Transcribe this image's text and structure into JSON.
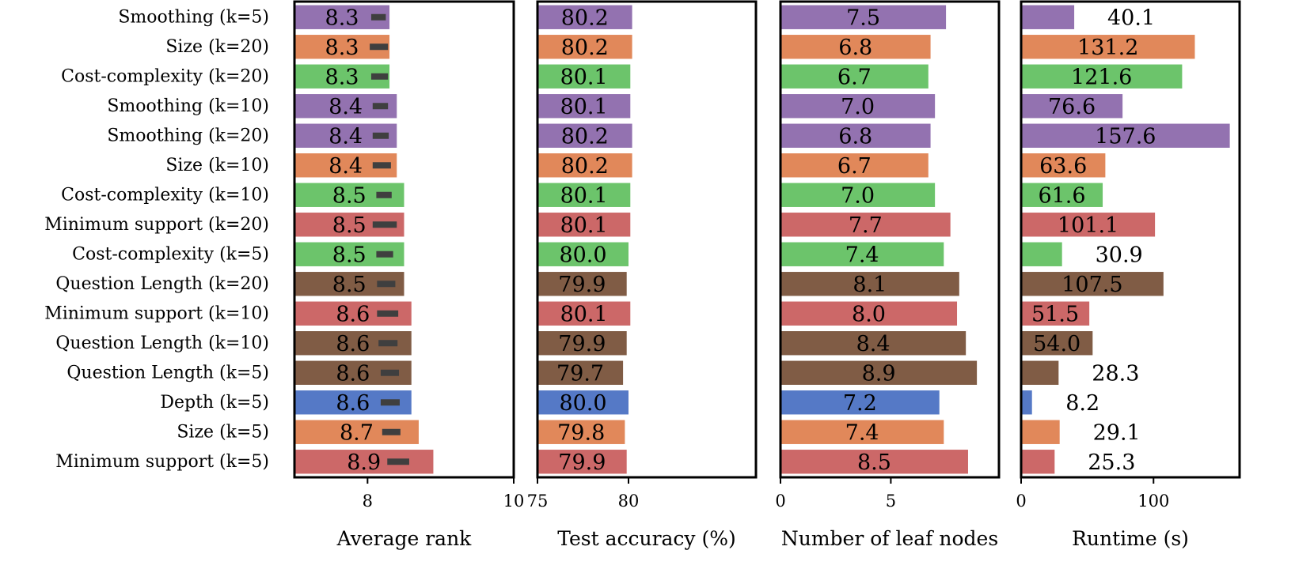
{
  "colors": {
    "Smoothing": "#9372b0",
    "Size": "#e1885a",
    "Cost-complexity": "#6cc46b",
    "Minimum support": "#cc6868",
    "Question Length": "#805c45",
    "Depth": "#5579c6",
    "error_bar": "#3f3f3f"
  },
  "chart_data": {
    "type": "bar",
    "orientation": "horizontal",
    "categories": [
      "Smoothing (k=5)",
      "Size (k=20)",
      "Cost-complexity (k=20)",
      "Smoothing (k=10)",
      "Smoothing (k=20)",
      "Size (k=10)",
      "Cost-complexity (k=10)",
      "Minimum support (k=20)",
      "Cost-complexity (k=5)",
      "Question Length (k=20)",
      "Minimum support (k=10)",
      "Question Length (k=10)",
      "Question Length (k=5)",
      "Depth (k=5)",
      "Size (k=5)",
      "Minimum support (k=5)"
    ],
    "groups": [
      "Smoothing",
      "Size",
      "Cost-complexity",
      "Smoothing",
      "Smoothing",
      "Size",
      "Cost-complexity",
      "Minimum support",
      "Cost-complexity",
      "Question Length",
      "Minimum support",
      "Question Length",
      "Question Length",
      "Depth",
      "Size",
      "Minimum support"
    ],
    "panels": [
      {
        "xlabel": "Average rank",
        "xlim": [
          7,
          10
        ],
        "ticks": [
          8,
          10
        ],
        "values": [
          8.3,
          8.3,
          8.3,
          8.4,
          8.4,
          8.4,
          8.5,
          8.5,
          8.5,
          8.5,
          8.6,
          8.6,
          8.6,
          8.6,
          8.7,
          8.9
        ],
        "labels": [
          "8.3",
          "8.3",
          "8.3",
          "8.4",
          "8.4",
          "8.4",
          "8.5",
          "8.5",
          "8.5",
          "8.5",
          "8.6",
          "8.6",
          "8.6",
          "8.6",
          "8.7",
          "8.9"
        ],
        "error_low": [
          8.05,
          8.03,
          8.05,
          8.07,
          8.07,
          8.07,
          8.12,
          8.07,
          8.12,
          8.13,
          8.13,
          8.15,
          8.18,
          8.18,
          8.2,
          8.27
        ],
        "error_high": [
          8.25,
          8.28,
          8.28,
          8.28,
          8.29,
          8.32,
          8.33,
          8.4,
          8.35,
          8.38,
          8.42,
          8.41,
          8.43,
          8.44,
          8.45,
          8.57
        ]
      },
      {
        "xlabel": "Test accuracy (%)",
        "xlim": [
          75,
          87
        ],
        "ticks": [
          75,
          80
        ],
        "values": [
          80.2,
          80.2,
          80.1,
          80.1,
          80.2,
          80.2,
          80.1,
          80.1,
          80.0,
          79.9,
          80.1,
          79.9,
          79.7,
          80.0,
          79.8,
          79.9
        ],
        "labels": [
          "80.2",
          "80.2",
          "80.1",
          "80.1",
          "80.2",
          "80.2",
          "80.1",
          "80.1",
          "80.0",
          "79.9",
          "80.1",
          "79.9",
          "79.7",
          "80.0",
          "79.8",
          "79.9"
        ]
      },
      {
        "xlabel": "Number of leaf nodes",
        "xlim": [
          0,
          9.9
        ],
        "ticks": [
          0,
          5
        ],
        "values": [
          7.5,
          6.8,
          6.7,
          7.0,
          6.8,
          6.7,
          7.0,
          7.7,
          7.4,
          8.1,
          8.0,
          8.4,
          8.9,
          7.2,
          7.4,
          8.5
        ],
        "labels": [
          "7.5",
          "6.8",
          "6.7",
          "7.0",
          "6.8",
          "6.7",
          "7.0",
          "7.7",
          "7.4",
          "8.1",
          "8.0",
          "8.4",
          "8.9",
          "7.2",
          "7.4",
          "8.5"
        ]
      },
      {
        "xlabel": "Runtime (s)",
        "xlim": [
          0,
          165
        ],
        "ticks": [
          0,
          100
        ],
        "values": [
          40.1,
          131.2,
          121.6,
          76.6,
          157.6,
          63.6,
          61.6,
          101.1,
          30.9,
          107.5,
          51.5,
          54.0,
          28.3,
          8.2,
          29.1,
          25.3
        ],
        "labels": [
          "40.1",
          "131.2",
          "121.6",
          "76.6",
          "157.6",
          "63.6",
          "61.6",
          "101.1",
          "30.9",
          "107.5",
          "51.5",
          "54.0",
          "28.3",
          "8.2",
          "29.1",
          "25.3"
        ]
      }
    ],
    "grid": false,
    "legend": "none"
  }
}
